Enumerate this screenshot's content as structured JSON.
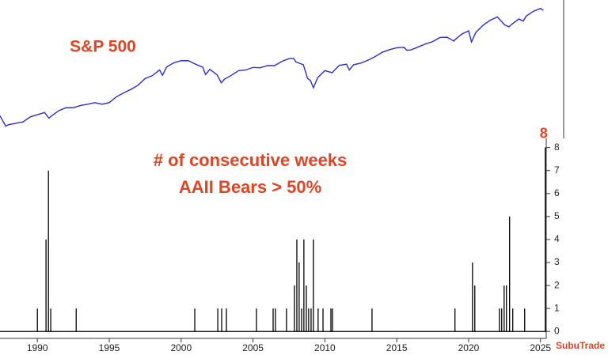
{
  "chart_data": [
    {
      "type": "line",
      "title": "S&P 500",
      "log_scale": true,
      "color": "#2b2fc6",
      "xlim": [
        1987.4,
        2025.4
      ],
      "ylim": [
        180,
        7400
      ],
      "x": [
        1987.4,
        1987.8,
        1988,
        1988.5,
        1989,
        1989.5,
        1990,
        1990.5,
        1990.8,
        1991,
        1991.5,
        1992,
        1992.5,
        1993,
        1993.5,
        1994,
        1994.5,
        1995,
        1995.5,
        1996,
        1996.5,
        1997,
        1997.5,
        1998,
        1998.5,
        1998.7,
        1999,
        1999.5,
        2000,
        2000.5,
        2001,
        2001.5,
        2001.7,
        2002,
        2002.5,
        2002.8,
        2003,
        2003.5,
        2004,
        2004.5,
        2005,
        2005.5,
        2006,
        2006.5,
        2007,
        2007.5,
        2007.8,
        2008,
        2008.5,
        2008.8,
        2009,
        2009.2,
        2009.5,
        2010,
        2010.5,
        2011,
        2011.5,
        2011.7,
        2012,
        2012.5,
        2013,
        2013.5,
        2014,
        2014.5,
        2015,
        2015.5,
        2015.7,
        2016,
        2016.5,
        2017,
        2017.5,
        2018,
        2018.5,
        2018.98,
        2019,
        2019.5,
        2020,
        2020.2,
        2020.5,
        2021,
        2021.5,
        2022,
        2022.5,
        2022.8,
        2023,
        2023.5,
        2023.8,
        2024,
        2024.5,
        2025,
        2025.2
      ],
      "values": [
        330,
        250,
        260,
        270,
        280,
        320,
        340,
        360,
        310,
        330,
        380,
        410,
        410,
        435,
        450,
        470,
        450,
        470,
        550,
        610,
        670,
        750,
        900,
        970,
        1130,
        980,
        1230,
        1370,
        1450,
        1450,
        1320,
        1220,
        1000,
        1150,
        990,
        800,
        880,
        980,
        1110,
        1130,
        1210,
        1200,
        1270,
        1270,
        1420,
        1530,
        1550,
        1400,
        1300,
        900,
        850,
        700,
        920,
        1110,
        1050,
        1280,
        1320,
        1130,
        1300,
        1360,
        1470,
        1620,
        1820,
        1950,
        2050,
        2080,
        1920,
        1940,
        2100,
        2270,
        2420,
        2700,
        2720,
        2450,
        2500,
        2950,
        3230,
        2400,
        3100,
        3750,
        4300,
        4700,
        3800,
        3600,
        3850,
        4450,
        4200,
        4800,
        5460,
        5900,
        5600
      ]
    },
    {
      "type": "stem",
      "title": "# of consecutive weeks",
      "subtitle": "AAII Bears > 50%",
      "watermark": "SubuTrade",
      "color": "#000000",
      "xlim": [
        1987.4,
        2025.4
      ],
      "ylim": [
        -0.3,
        8.4
      ],
      "xticks": [
        1990,
        1995,
        2000,
        2005,
        2010,
        2015,
        2020,
        2025
      ],
      "yticks": [
        0,
        1,
        2,
        3,
        4,
        5,
        6,
        7,
        8
      ],
      "x": [
        1990.0,
        1990.6,
        1990.77,
        1990.93,
        1992.7,
        2000.95,
        2002.55,
        2002.82,
        2003.15,
        2005.24,
        2006.4,
        2006.56,
        2007.33,
        2007.88,
        2008.05,
        2008.21,
        2008.38,
        2008.54,
        2008.71,
        2008.87,
        2009.04,
        2009.2,
        2009.53,
        2009.87,
        2010.42,
        2010.53,
        2013.28,
        2019.05,
        2020.27,
        2020.43,
        2022.14,
        2022.3,
        2022.47,
        2022.63,
        2022.85,
        2023.07,
        2023.9,
        2025.33
      ],
      "values": [
        1,
        4,
        7,
        1,
        1,
        1,
        1,
        1,
        1,
        1,
        1,
        1,
        1,
        2,
        4,
        3,
        1,
        4,
        2,
        1,
        1,
        4,
        1,
        1,
        1,
        1,
        1,
        1,
        3,
        2,
        1,
        1,
        2,
        2,
        5,
        1,
        1,
        8
      ]
    }
  ]
}
